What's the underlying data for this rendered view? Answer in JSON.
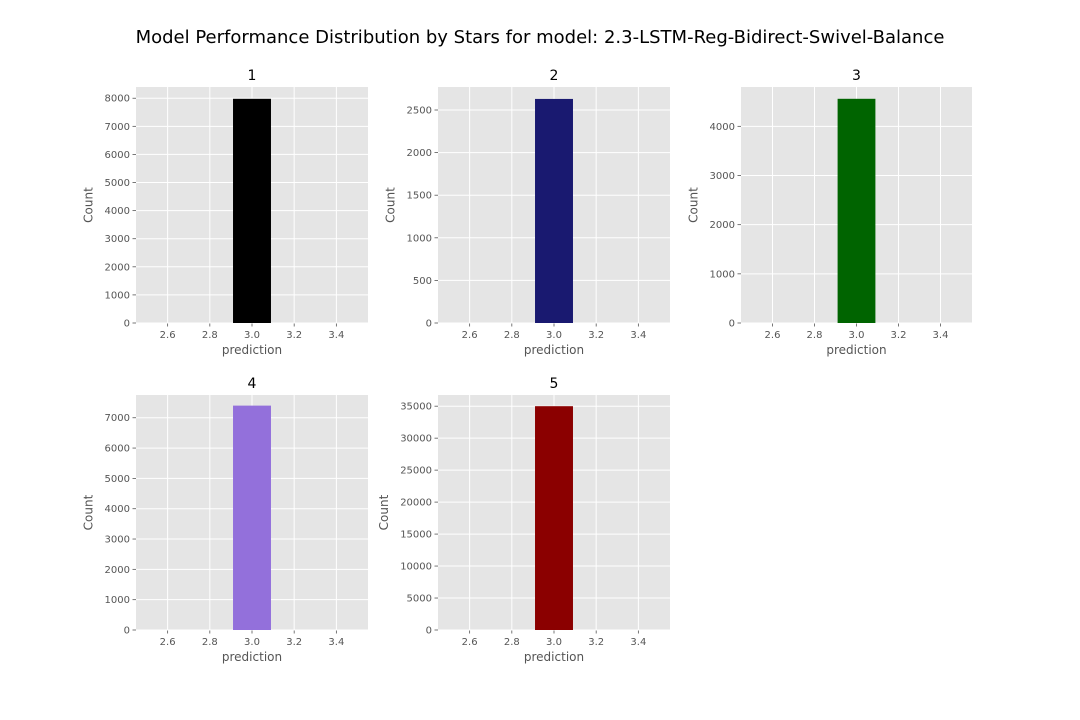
{
  "figure": {
    "title": "Model Performance Distribution by Stars for model: 2.3-LSTM-Reg-Bidirect-Swivel-Balance",
    "background": "#E5E5E5",
    "grid_color": "#FFFFFF",
    "text_color": "#555555"
  },
  "chart_data": [
    {
      "type": "bar",
      "title": "1",
      "xlabel": "prediction",
      "ylabel": "Count",
      "x": [
        3.0
      ],
      "values": [
        7980
      ],
      "bar_width": 0.18,
      "color": "#000000",
      "xlim": [
        2.45,
        3.55
      ],
      "ylim": [
        0,
        8400
      ],
      "xticks": [
        "2.6",
        "2.8",
        "3.0",
        "3.2",
        "3.4"
      ],
      "yticks": [
        "0",
        "1000",
        "2000",
        "3000",
        "4000",
        "5000",
        "6000",
        "7000",
        "8000"
      ],
      "grid": true
    },
    {
      "type": "bar",
      "title": "2",
      "xlabel": "prediction",
      "ylabel": "Count",
      "x": [
        3.0
      ],
      "values": [
        2630
      ],
      "bar_width": 0.18,
      "color": "#191970",
      "xlim": [
        2.45,
        3.55
      ],
      "ylim": [
        0,
        2770
      ],
      "xticks": [
        "2.6",
        "2.8",
        "3.0",
        "3.2",
        "3.4"
      ],
      "yticks": [
        "0",
        "500",
        "1000",
        "1500",
        "2000",
        "2500"
      ],
      "grid": true
    },
    {
      "type": "bar",
      "title": "3",
      "xlabel": "prediction",
      "ylabel": "Count",
      "x": [
        3.0
      ],
      "values": [
        4560
      ],
      "bar_width": 0.18,
      "color": "#006400",
      "xlim": [
        2.45,
        3.55
      ],
      "ylim": [
        0,
        4800
      ],
      "xticks": [
        "2.6",
        "2.8",
        "3.0",
        "3.2",
        "3.4"
      ],
      "yticks": [
        "0",
        "1000",
        "2000",
        "3000",
        "4000"
      ],
      "grid": true
    },
    {
      "type": "bar",
      "title": "4",
      "xlabel": "prediction",
      "ylabel": "Count",
      "x": [
        3.0
      ],
      "values": [
        7400
      ],
      "bar_width": 0.18,
      "color": "#9370DB",
      "xlim": [
        2.45,
        3.55
      ],
      "ylim": [
        0,
        7750
      ],
      "xticks": [
        "2.6",
        "2.8",
        "3.0",
        "3.2",
        "3.4"
      ],
      "yticks": [
        "0",
        "1000",
        "2000",
        "3000",
        "4000",
        "5000",
        "6000",
        "7000"
      ],
      "grid": true
    },
    {
      "type": "bar",
      "title": "5",
      "xlabel": "prediction",
      "ylabel": "Count",
      "x": [
        3.0
      ],
      "values": [
        35000
      ],
      "bar_width": 0.18,
      "color": "#8B0000",
      "xlim": [
        2.45,
        3.55
      ],
      "ylim": [
        0,
        36750
      ],
      "xticks": [
        "2.6",
        "2.8",
        "3.0",
        "3.2",
        "3.4"
      ],
      "yticks": [
        "0",
        "5000",
        "10000",
        "15000",
        "20000",
        "25000",
        "30000",
        "35000"
      ],
      "grid": true
    }
  ]
}
